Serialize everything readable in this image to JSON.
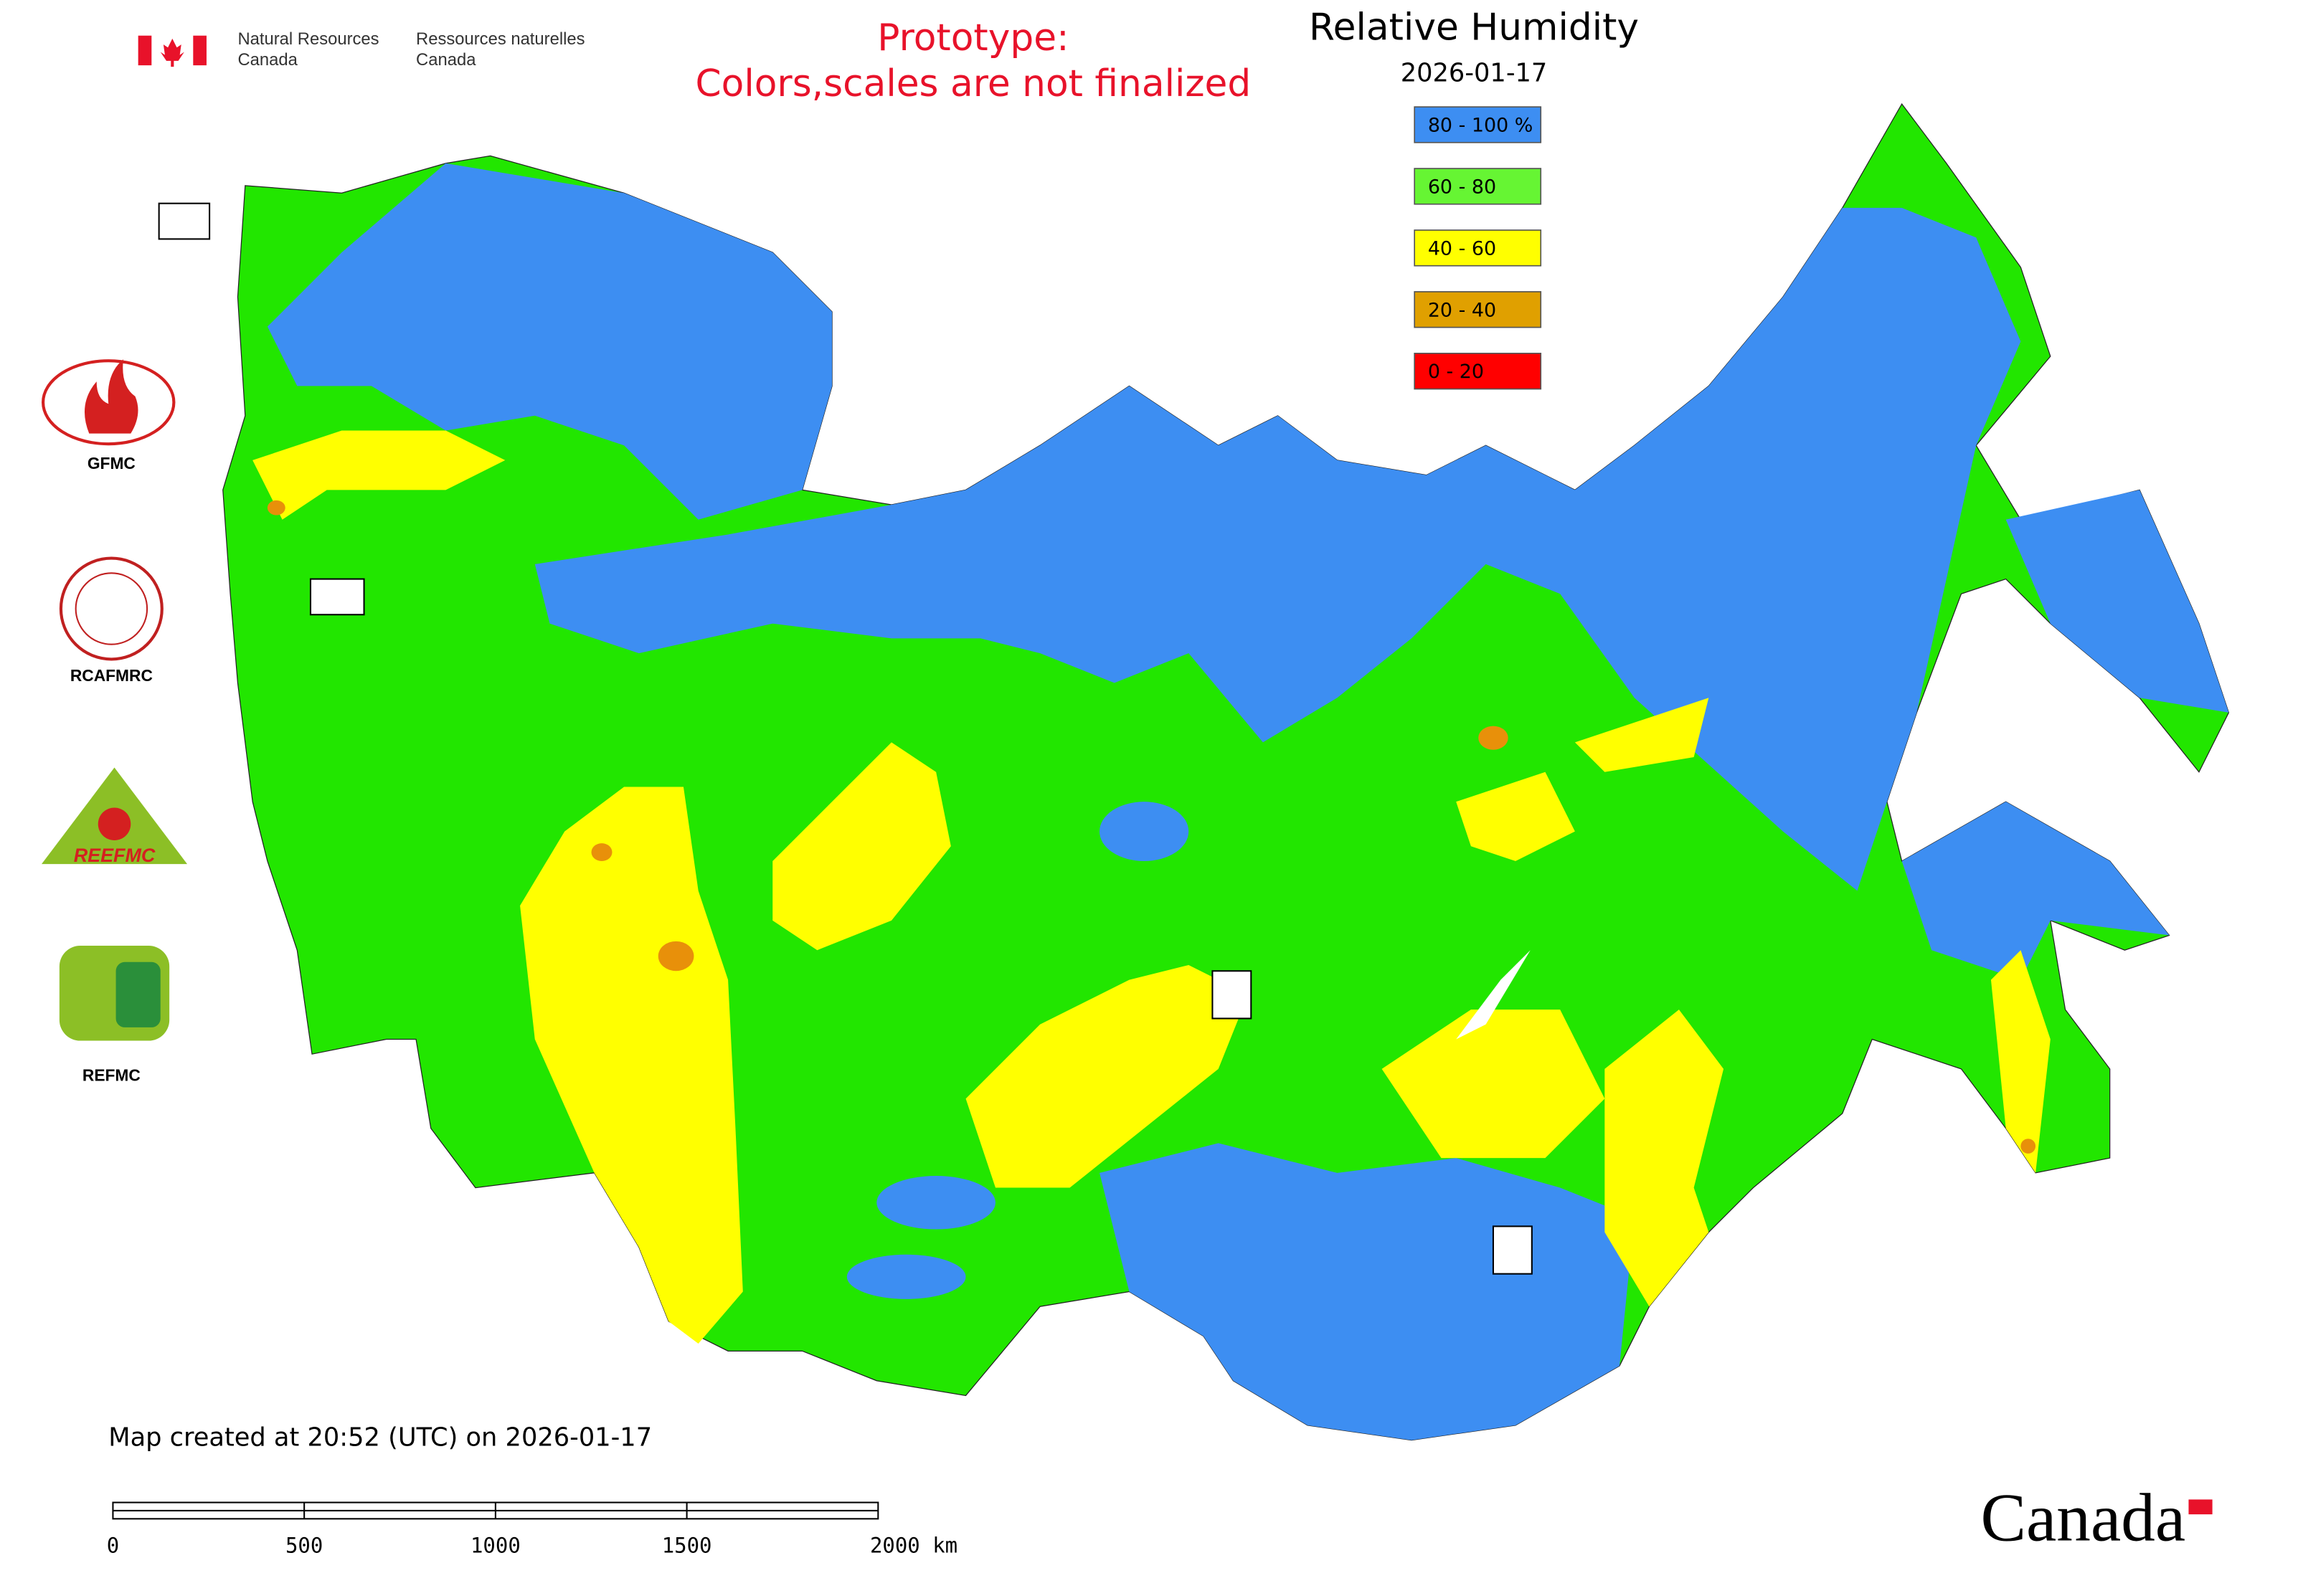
{
  "header": {
    "agency_en_1": "Natural Resources",
    "agency_en_2": "Canada",
    "agency_fr_1": "Ressources naturelles",
    "agency_fr_2": "Canada",
    "notice_1": "Prototype:",
    "notice_2": "Colors,scales are not finalized"
  },
  "legend": {
    "title": "Relative Humidity",
    "date": "2026-01-17",
    "items": [
      {
        "label": "80 - 100 %",
        "color": "#3d8ef2"
      },
      {
        "label": "60 - 80",
        "color": "#66f533"
      },
      {
        "label": "40 - 60",
        "color": "#ffff00"
      },
      {
        "label": "20 - 40",
        "color": "#e0a000"
      },
      {
        "label": "0 - 20",
        "color": "#ff0000"
      }
    ]
  },
  "logos": {
    "gfmc": "GFMC",
    "rcafmrc": "RCAFMRC",
    "reefmc": "REEFMC",
    "refmc": "REFMC"
  },
  "footer": {
    "created": "Map created at 20:52 (UTC) on 2026-01-17",
    "scale": [
      "0",
      "500",
      "1000",
      "1500",
      "2000 km"
    ],
    "wordmark": "Canada"
  }
}
